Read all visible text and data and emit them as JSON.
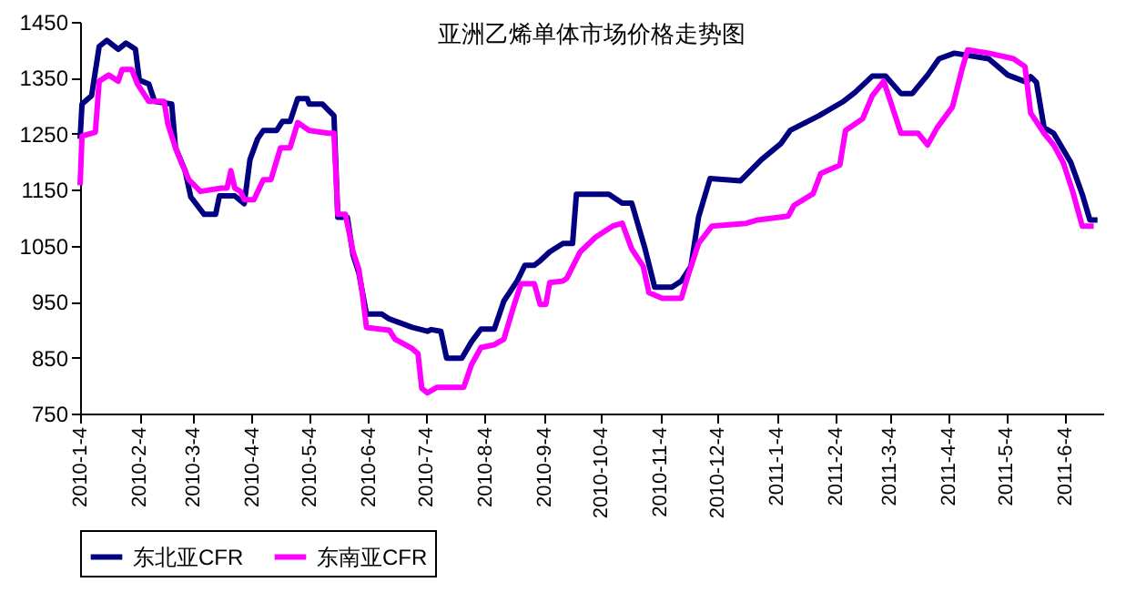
{
  "chart_data": {
    "type": "line",
    "title": "亚洲乙烯单体市场价格走势图",
    "xlim": [
      "2010-01-04",
      "2011-06-24"
    ],
    "xticks": [
      {
        "value": "2010-01-04",
        "label": "2010-1-4"
      },
      {
        "value": "2010-02-04",
        "label": "2010-2-4"
      },
      {
        "value": "2010-03-04",
        "label": "2010-3-4"
      },
      {
        "value": "2010-04-04",
        "label": "2010-4-4"
      },
      {
        "value": "2010-05-04",
        "label": "2010-5-4"
      },
      {
        "value": "2010-06-04",
        "label": "2010-6-4"
      },
      {
        "value": "2010-07-04",
        "label": "2010-7-4"
      },
      {
        "value": "2010-08-04",
        "label": "2010-8-4"
      },
      {
        "value": "2010-09-04",
        "label": "2010-9-4"
      },
      {
        "value": "2010-10-04",
        "label": "2010-10-4"
      },
      {
        "value": "2010-11-04",
        "label": "2010-11-4"
      },
      {
        "value": "2010-12-04",
        "label": "2010-12-4"
      },
      {
        "value": "2011-01-04",
        "label": "2011-1-4"
      },
      {
        "value": "2011-02-04",
        "label": "2011-2-4"
      },
      {
        "value": "2011-03-04",
        "label": "2011-3-4"
      },
      {
        "value": "2011-04-04",
        "label": "2011-4-4"
      },
      {
        "value": "2011-05-04",
        "label": "2011-5-4"
      },
      {
        "value": "2011-06-04",
        "label": "2011-6-4"
      }
    ],
    "ylim": [
      750,
      1450
    ],
    "yticks": [
      750,
      850,
      950,
      1050,
      1150,
      1250,
      1350,
      1450
    ],
    "grid": false,
    "legend": "bottom",
    "series": [
      {
        "name": "东北亚CFR",
        "color": "#000080",
        "x": [
          "2010-01-04",
          "2010-01-05",
          "2010-01-10",
          "2010-01-14",
          "2010-01-18",
          "2010-01-24",
          "2010-01-28",
          "2010-02-02",
          "2010-02-04",
          "2010-02-09",
          "2010-02-12",
          "2010-02-21",
          "2010-02-23",
          "2010-02-28",
          "2010-03-03",
          "2010-03-10",
          "2010-03-16",
          "2010-03-18",
          "2010-03-26",
          "2010-03-31",
          "2010-04-03",
          "2010-04-07",
          "2010-04-10",
          "2010-04-17",
          "2010-04-20",
          "2010-04-24",
          "2010-04-28",
          "2010-05-03",
          "2010-05-04",
          "2010-05-11",
          "2010-05-17",
          "2010-05-19",
          "2010-05-24",
          "2010-05-27",
          "2010-05-30",
          "2010-06-03",
          "2010-06-11",
          "2010-06-15",
          "2010-06-27",
          "2010-07-05",
          "2010-07-07",
          "2010-07-12",
          "2010-07-15",
          "2010-07-23",
          "2010-07-28",
          "2010-08-02",
          "2010-08-09",
          "2010-08-14",
          "2010-08-21",
          "2010-08-25",
          "2010-08-30",
          "2010-09-02",
          "2010-09-07",
          "2010-09-14",
          "2010-09-19",
          "2010-09-21",
          "2010-10-08",
          "2010-10-15",
          "2010-10-20",
          "2010-10-27",
          "2010-11-01",
          "2010-11-10",
          "2010-11-15",
          "2010-11-20",
          "2010-11-24",
          "2010-11-30",
          "2010-12-16",
          "2010-12-27",
          "2011-01-06",
          "2011-01-11",
          "2011-01-26",
          "2011-02-08",
          "2011-02-14",
          "2011-02-23",
          "2011-03-02",
          "2011-03-10",
          "2011-03-16",
          "2011-03-24",
          "2011-03-30",
          "2011-04-07",
          "2011-04-25",
          "2011-05-05",
          "2011-05-15",
          "2011-05-17",
          "2011-05-20",
          "2011-05-24",
          "2011-05-29",
          "2011-06-07",
          "2011-06-13",
          "2011-06-17",
          "2011-06-21"
        ],
        "values": [
          1241,
          1303,
          1318,
          1406,
          1417,
          1401,
          1412,
          1401,
          1346,
          1339,
          1308,
          1303,
          1225,
          1184,
          1137,
          1106,
          1106,
          1139,
          1139,
          1125,
          1204,
          1241,
          1256,
          1256,
          1272,
          1272,
          1313,
          1313,
          1303,
          1303,
          1282,
          1101,
          1101,
          1033,
          1002,
          928,
          928,
          919,
          904,
          897,
          900,
          897,
          849,
          849,
          878,
          901,
          901,
          951,
          987,
          1015,
          1015,
          1023,
          1039,
          1054,
          1054,
          1142,
          1142,
          1126,
          1126,
          1044,
          976,
          976,
          987,
          1013,
          1101,
          1170,
          1166,
          1204,
          1232,
          1256,
          1282,
          1308,
          1324,
          1353,
          1353,
          1322,
          1322,
          1355,
          1384,
          1394,
          1384,
          1355,
          1342,
          1352,
          1342,
          1261,
          1251,
          1199,
          1142,
          1096,
          1096
        ]
      },
      {
        "name": "东南亚CFR",
        "color": "#ff00ff",
        "x": [
          "2010-01-04",
          "2010-01-05",
          "2010-01-12",
          "2010-01-14",
          "2010-01-19",
          "2010-01-24",
          "2010-01-26",
          "2010-01-31",
          "2010-02-03",
          "2010-02-09",
          "2010-02-17",
          "2010-02-19",
          "2010-02-23",
          "2010-02-26",
          "2010-03-02",
          "2010-03-08",
          "2010-03-19",
          "2010-03-22",
          "2010-03-24",
          "2010-03-26",
          "2010-03-29",
          "2010-03-31",
          "2010-04-05",
          "2010-04-10",
          "2010-04-14",
          "2010-04-19",
          "2010-04-24",
          "2010-04-28",
          "2010-05-04",
          "2010-05-14",
          "2010-05-17",
          "2010-05-19",
          "2010-05-23",
          "2010-05-27",
          "2010-05-30",
          "2010-06-01",
          "2010-06-03",
          "2010-06-15",
          "2010-06-18",
          "2010-06-27",
          "2010-06-30",
          "2010-07-02",
          "2010-07-05",
          "2010-07-10",
          "2010-07-24",
          "2010-07-28",
          "2010-08-02",
          "2010-08-09",
          "2010-08-14",
          "2010-08-19",
          "2010-08-23",
          "2010-08-30",
          "2010-09-02",
          "2010-09-05",
          "2010-09-07",
          "2010-09-14",
          "2010-09-16",
          "2010-09-23",
          "2010-10-01",
          "2010-10-10",
          "2010-10-15",
          "2010-10-20",
          "2010-10-26",
          "2010-10-29",
          "2010-11-05",
          "2010-11-15",
          "2010-11-19",
          "2010-11-24",
          "2010-12-01",
          "2010-12-19",
          "2010-12-25",
          "2011-01-10",
          "2011-01-13",
          "2011-01-23",
          "2011-01-27",
          "2011-02-06",
          "2011-02-09",
          "2011-02-18",
          "2011-02-23",
          "2011-03-01",
          "2011-03-05",
          "2011-03-10",
          "2011-03-19",
          "2011-03-24",
          "2011-03-29",
          "2011-04-06",
          "2011-04-11",
          "2011-04-14",
          "2011-04-25",
          "2011-05-08",
          "2011-05-14",
          "2011-05-17",
          "2011-05-24",
          "2011-05-29",
          "2011-06-03",
          "2011-06-08",
          "2011-06-13",
          "2011-06-19"
        ],
        "values": [
          1158,
          1246,
          1253,
          1344,
          1355,
          1344,
          1365,
          1365,
          1339,
          1308,
          1308,
          1267,
          1225,
          1199,
          1168,
          1147,
          1153,
          1153,
          1184,
          1153,
          1147,
          1132,
          1132,
          1168,
          1168,
          1225,
          1225,
          1270,
          1256,
          1251,
          1251,
          1106,
          1106,
          1039,
          1008,
          961,
          904,
          899,
          883,
          866,
          857,
          795,
          787,
          797,
          797,
          837,
          868,
          873,
          883,
          940,
          982,
          982,
          945,
          945,
          984,
          987,
          992,
          1039,
          1065,
          1085,
          1090,
          1044,
          1013,
          966,
          956,
          956,
          1002,
          1054,
          1085,
          1090,
          1096,
          1103,
          1122,
          1143,
          1179,
          1194,
          1256,
          1277,
          1318,
          1344,
          1303,
          1251,
          1251,
          1230,
          1261,
          1298,
          1365,
          1400,
          1394,
          1384,
          1370,
          1287,
          1251,
          1230,
          1199,
          1147,
          1085,
          1085
        ]
      }
    ]
  }
}
